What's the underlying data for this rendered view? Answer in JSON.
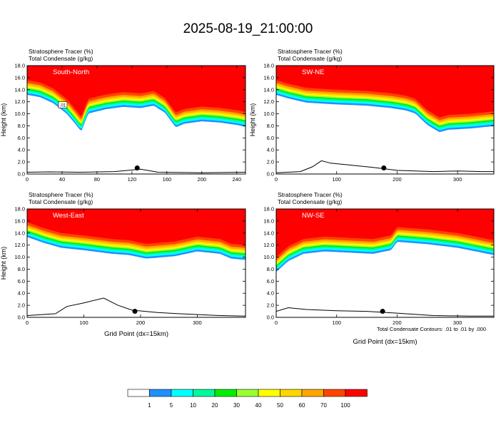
{
  "title": "2025-08-19_21:00:00",
  "contour_note": "Total Condensate Contours: .01 to .01 by .000",
  "colorbar": {
    "labels": [
      "1",
      "5",
      "10",
      "20",
      "30",
      "40",
      "50",
      "60",
      "70",
      "100"
    ],
    "colors": [
      "#ffffff",
      "#1e90ff",
      "#00ffff",
      "#00fa9a",
      "#00ee00",
      "#9aff32",
      "#ffff00",
      "#ffd700",
      "#ffa500",
      "#ff4500",
      "#ff0000"
    ]
  },
  "chart_data": [
    {
      "type": "heatmap",
      "title": "South-North",
      "header": [
        "Stratosphere Tracer   (%)",
        "Total Condensate   (g/kg)"
      ],
      "ylabel": "Height (km)",
      "xlabel": "",
      "xlim": [
        0,
        250
      ],
      "ylim": [
        0,
        18
      ],
      "xticks": [
        0,
        40,
        80,
        120,
        160,
        200,
        240
      ],
      "yticks": [
        0,
        2,
        4,
        6,
        8,
        10,
        12,
        14,
        16,
        18
      ],
      "marker": {
        "x": 126,
        "y": 1.0
      },
      "tracer_top": [
        [
          0,
          15.6
        ],
        [
          15,
          15.2
        ],
        [
          30,
          14.2
        ],
        [
          45,
          12.5
        ],
        [
          55,
          10.8
        ],
        [
          62,
          9.5
        ],
        [
          70,
          12.5
        ],
        [
          90,
          13.2
        ],
        [
          110,
          13.6
        ],
        [
          130,
          13.4
        ],
        [
          145,
          13.8
        ],
        [
          158,
          12.6
        ],
        [
          170,
          10.2
        ],
        [
          180,
          10.8
        ],
        [
          200,
          11.2
        ],
        [
          220,
          11.0
        ],
        [
          240,
          10.6
        ],
        [
          250,
          10.3
        ]
      ],
      "terrain": [
        [
          0,
          0.3
        ],
        [
          25,
          0.35
        ],
        [
          60,
          0.3
        ],
        [
          100,
          0.4
        ],
        [
          130,
          0.8
        ],
        [
          150,
          0.3
        ],
        [
          200,
          0.2
        ],
        [
          250,
          0.3
        ]
      ],
      "contour_label": ".01"
    },
    {
      "type": "heatmap",
      "title": "SW-NE",
      "header": [
        "Stratosphere Tracer   (%)",
        "Total Condensate   (g/kg)"
      ],
      "ylabel": "Height (km)",
      "xlabel": "",
      "xlim": [
        0,
        360
      ],
      "ylim": [
        0,
        18
      ],
      "xticks": [
        0,
        100,
        200,
        300
      ],
      "yticks": [
        0,
        2,
        4,
        6,
        8,
        10,
        12,
        14,
        16,
        18
      ],
      "marker": {
        "x": 178,
        "y": 1.0
      },
      "tracer_top": [
        [
          0,
          15.6
        ],
        [
          20,
          15.0
        ],
        [
          50,
          14.3
        ],
        [
          100,
          14.0
        ],
        [
          150,
          13.8
        ],
        [
          190,
          13.4
        ],
        [
          215,
          13.0
        ],
        [
          230,
          12.5
        ],
        [
          250,
          10.6
        ],
        [
          270,
          9.4
        ],
        [
          285,
          9.8
        ],
        [
          320,
          10.0
        ],
        [
          360,
          10.4
        ]
      ],
      "terrain": [
        [
          0,
          0.2
        ],
        [
          40,
          0.4
        ],
        [
          60,
          1.2
        ],
        [
          75,
          2.2
        ],
        [
          90,
          1.8
        ],
        [
          120,
          1.5
        ],
        [
          160,
          1.1
        ],
        [
          200,
          0.6
        ],
        [
          260,
          0.4
        ],
        [
          300,
          0.5
        ],
        [
          340,
          0.4
        ],
        [
          360,
          0.4
        ]
      ]
    },
    {
      "type": "heatmap",
      "title": "West-East",
      "header": [
        "Stratosphere Tracer   (%)",
        "Total Condensate   (g/kg)"
      ],
      "ylabel": "Height (km)",
      "xlabel": "Grid Point (dx=15km)",
      "xlim": [
        0,
        385
      ],
      "ylim": [
        0,
        18
      ],
      "xticks": [
        0,
        100,
        200,
        300
      ],
      "yticks": [
        0,
        2,
        4,
        6,
        8,
        10,
        12,
        14,
        16,
        18
      ],
      "marker": {
        "x": 190,
        "y": 1.0
      },
      "tracer_top": [
        [
          0,
          15.8
        ],
        [
          30,
          14.8
        ],
        [
          60,
          14.0
        ],
        [
          100,
          13.6
        ],
        [
          150,
          13.0
        ],
        [
          180,
          12.8
        ],
        [
          210,
          12.2
        ],
        [
          260,
          12.6
        ],
        [
          300,
          13.4
        ],
        [
          340,
          13.0
        ],
        [
          360,
          12.2
        ],
        [
          385,
          12.0
        ]
      ],
      "terrain": [
        [
          0,
          0.3
        ],
        [
          50,
          0.6
        ],
        [
          70,
          1.8
        ],
        [
          100,
          2.4
        ],
        [
          135,
          3.2
        ],
        [
          160,
          2.0
        ],
        [
          185,
          1.2
        ],
        [
          230,
          0.8
        ],
        [
          290,
          0.5
        ],
        [
          340,
          0.3
        ],
        [
          385,
          0.2
        ]
      ]
    },
    {
      "type": "heatmap",
      "title": "NW-SE",
      "header": [
        "Stratosphere Tracer   (%)",
        "Total Condensate   (g/kg)"
      ],
      "ylabel": "",
      "xlabel": "Grid Point (dx=15km)",
      "xlim": [
        0,
        360
      ],
      "ylim": [
        0,
        18
      ],
      "xticks": [
        0,
        100,
        200,
        300
      ],
      "yticks": [
        0,
        2,
        4,
        6,
        8,
        10,
        12,
        14,
        16,
        18
      ],
      "marker": {
        "x": 176,
        "y": 1.0
      },
      "tracer_top": [
        [
          0,
          10.0
        ],
        [
          20,
          11.8
        ],
        [
          45,
          13.0
        ],
        [
          80,
          13.4
        ],
        [
          120,
          13.2
        ],
        [
          160,
          13.0
        ],
        [
          190,
          13.6
        ],
        [
          200,
          15.0
        ],
        [
          250,
          14.6
        ],
        [
          300,
          14.0
        ],
        [
          340,
          13.2
        ],
        [
          360,
          12.8
        ]
      ],
      "terrain": [
        [
          0,
          1.0
        ],
        [
          20,
          1.6
        ],
        [
          50,
          1.3
        ],
        [
          100,
          1.1
        ],
        [
          150,
          1.0
        ],
        [
          200,
          0.7
        ],
        [
          260,
          0.3
        ],
        [
          320,
          0.2
        ],
        [
          360,
          0.2
        ]
      ]
    }
  ]
}
